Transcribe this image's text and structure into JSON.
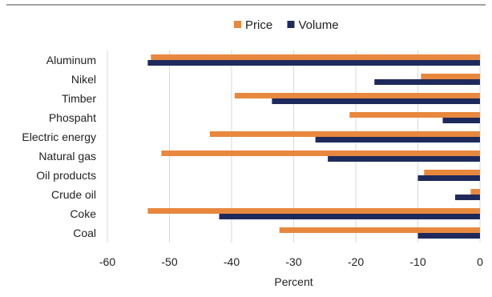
{
  "chart_data": {
    "type": "bar",
    "orientation": "horizontal",
    "title": "",
    "xlabel": "Percent",
    "ylabel": "",
    "xlim": [
      -60,
      0
    ],
    "x_ticks": [
      -60,
      -50,
      -40,
      -30,
      -20,
      -10,
      0
    ],
    "grid": "vertical",
    "legend_position": "top",
    "categories": [
      "Aluminum",
      "Nikel",
      "Timber",
      "Phospaht",
      "Electric energy",
      "Natural gas",
      "Oil products",
      "Crude oil",
      "Coke",
      "Coal"
    ],
    "series": [
      {
        "name": "Price",
        "color": "#E8883E",
        "values": [
          -53,
          -9.5,
          -39.5,
          -21,
          -43.5,
          -51.3,
          -9,
          -1.5,
          -53.5,
          -32.3
        ]
      },
      {
        "name": "Volume",
        "color": "#1F2A5C",
        "values": [
          -53.5,
          -17,
          -33.5,
          -6,
          -26.5,
          -24.5,
          -10,
          -4,
          -42,
          -10
        ]
      }
    ]
  }
}
